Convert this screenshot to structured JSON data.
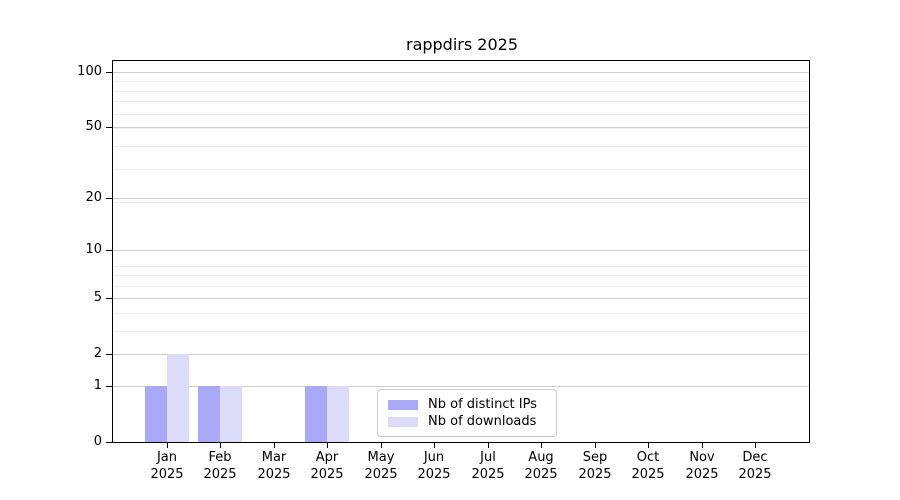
{
  "title": "rappdirs 2025",
  "chart_data": {
    "type": "bar",
    "title": "rappdirs 2025",
    "categories": [
      "Jan",
      "Feb",
      "Mar",
      "Apr",
      "May",
      "Jun",
      "Jul",
      "Aug",
      "Sep",
      "Oct",
      "Nov",
      "Dec"
    ],
    "year": "2025",
    "series": [
      {
        "name": "Nb of distinct IPs",
        "color": "#a9a9f7",
        "values": [
          1,
          1,
          0,
          1,
          0,
          0,
          0,
          0,
          0,
          0,
          0,
          0
        ]
      },
      {
        "name": "Nb of downloads",
        "color": "#dcdcf8",
        "values": [
          2,
          1,
          0,
          1,
          0,
          0,
          0,
          0,
          0,
          0,
          0,
          0
        ]
      }
    ],
    "yscale": "log1p",
    "ylim": [
      0,
      115
    ],
    "y_ticks": [
      0,
      1,
      2,
      5,
      10,
      20,
      50,
      100
    ],
    "y_minor_ticks": [
      3,
      4,
      6,
      7,
      8,
      19,
      29,
      39,
      49,
      59,
      69,
      79,
      89
    ],
    "xlabel": "",
    "ylabel": "",
    "grid": "horizontal",
    "legend_position": "bottom-center",
    "colors": {
      "axis": "#000000",
      "grid_major": "#cfcfcf",
      "grid_minor": "#ededed",
      "legend_border": "#cccccc",
      "background": "#ffffff"
    }
  }
}
